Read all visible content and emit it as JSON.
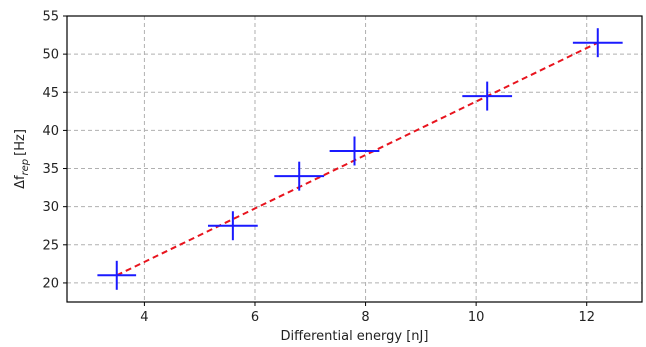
{
  "chart_data": {
    "type": "scatter",
    "xlabel": "Differential energy [nJ]",
    "ylabel_prefix": "Δf",
    "ylabel_sub": "rep",
    "ylabel_unit": "[Hz]",
    "xlim": [
      2.6,
      13.0
    ],
    "ylim": [
      17.5,
      55
    ],
    "xticks": [
      4,
      6,
      8,
      10,
      12
    ],
    "yticks": [
      20,
      25,
      30,
      35,
      40,
      45,
      50,
      55
    ],
    "grid": true,
    "series": [
      {
        "marker_color": "#1a1aff",
        "points": [
          {
            "x": 3.5,
            "y": 21.0,
            "xerr": 0.35,
            "yerr": 1.9
          },
          {
            "x": 5.6,
            "y": 27.5,
            "xerr": 0.45,
            "yerr": 1.9
          },
          {
            "x": 6.8,
            "y": 34.0,
            "xerr": 0.45,
            "yerr": 1.9
          },
          {
            "x": 7.8,
            "y": 37.3,
            "xerr": 0.45,
            "yerr": 1.9
          },
          {
            "x": 10.2,
            "y": 44.5,
            "xerr": 0.45,
            "yerr": 1.9
          },
          {
            "x": 12.2,
            "y": 51.5,
            "xerr": 0.45,
            "yerr": 1.9
          }
        ]
      }
    ],
    "fit": {
      "color": "#e8141e",
      "style": "dashed",
      "x": [
        3.5,
        12.2
      ],
      "y": [
        21.0,
        51.5
      ]
    }
  }
}
